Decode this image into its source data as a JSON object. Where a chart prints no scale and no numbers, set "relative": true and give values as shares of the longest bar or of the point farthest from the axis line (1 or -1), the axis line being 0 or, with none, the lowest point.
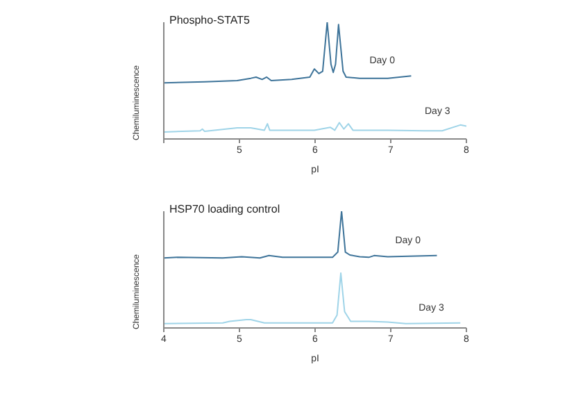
{
  "chart_data": [
    {
      "type": "line",
      "title": "Phospho-STAT5",
      "xlabel": "pI",
      "ylabel": "Chemiluminescence",
      "relative": true,
      "xlim": [
        4,
        8
      ],
      "xticks": [
        {
          "value": 4,
          "label": null
        },
        5,
        6,
        7,
        8
      ],
      "marker": "none",
      "line_style": "solid",
      "series": [
        {
          "name": "Day 0",
          "color": "#3d7399",
          "x": [
            4.0,
            4.54,
            4.97,
            5.15,
            5.22,
            5.3,
            5.36,
            5.42,
            5.69,
            5.93,
            5.99,
            6.05,
            6.1,
            6.16,
            6.21,
            6.24,
            6.27,
            6.31,
            6.37,
            6.41,
            6.59,
            6.96,
            7.27
          ],
          "values": [
            0.48,
            0.49,
            0.5,
            0.52,
            0.53,
            0.51,
            0.53,
            0.5,
            0.51,
            0.53,
            0.6,
            0.56,
            0.58,
            1.0,
            0.64,
            0.57,
            0.64,
            0.98,
            0.58,
            0.53,
            0.52,
            0.52,
            0.54
          ]
        },
        {
          "name": "Day 3",
          "color": "#9fd4e8",
          "x": [
            4.0,
            4.48,
            4.51,
            4.54,
            4.97,
            5.15,
            5.33,
            5.37,
            5.4,
            5.99,
            6.2,
            6.26,
            6.32,
            6.38,
            6.44,
            6.5,
            6.96,
            7.44,
            7.68,
            7.92,
            8.0
          ],
          "values": [
            0.06,
            0.07,
            0.085,
            0.065,
            0.095,
            0.095,
            0.075,
            0.13,
            0.075,
            0.075,
            0.1,
            0.075,
            0.14,
            0.085,
            0.13,
            0.075,
            0.075,
            0.07,
            0.07,
            0.12,
            0.11
          ]
        }
      ]
    },
    {
      "type": "line",
      "title": "HSP70 loading control",
      "xlabel": "pI",
      "ylabel": "Chemiluminescence",
      "relative": true,
      "xlim": [
        4,
        8
      ],
      "xticks": [
        4,
        5,
        6,
        7,
        8
      ],
      "marker": "none",
      "line_style": "solid",
      "series": [
        {
          "name": "Day 0",
          "color": "#3d7399",
          "x": [
            4.0,
            4.18,
            4.78,
            5.03,
            5.27,
            5.39,
            5.57,
            6.23,
            6.3,
            6.35,
            6.4,
            6.46,
            6.59,
            6.71,
            6.78,
            6.96,
            7.61
          ],
          "values": [
            0.6,
            0.605,
            0.6,
            0.61,
            0.6,
            0.62,
            0.605,
            0.605,
            0.65,
            1.0,
            0.65,
            0.625,
            0.61,
            0.605,
            0.62,
            0.61,
            0.62
          ]
        },
        {
          "name": "Day 3",
          "color": "#9fd4e8",
          "x": [
            4.0,
            4.78,
            4.87,
            5.09,
            5.15,
            5.33,
            6.23,
            6.29,
            6.34,
            6.39,
            6.47,
            6.59,
            6.71,
            6.96,
            7.2,
            7.92
          ],
          "values": [
            0.037,
            0.043,
            0.057,
            0.071,
            0.071,
            0.043,
            0.043,
            0.11,
            0.47,
            0.14,
            0.057,
            0.057,
            0.057,
            0.051,
            0.037,
            0.043
          ]
        }
      ]
    }
  ]
}
